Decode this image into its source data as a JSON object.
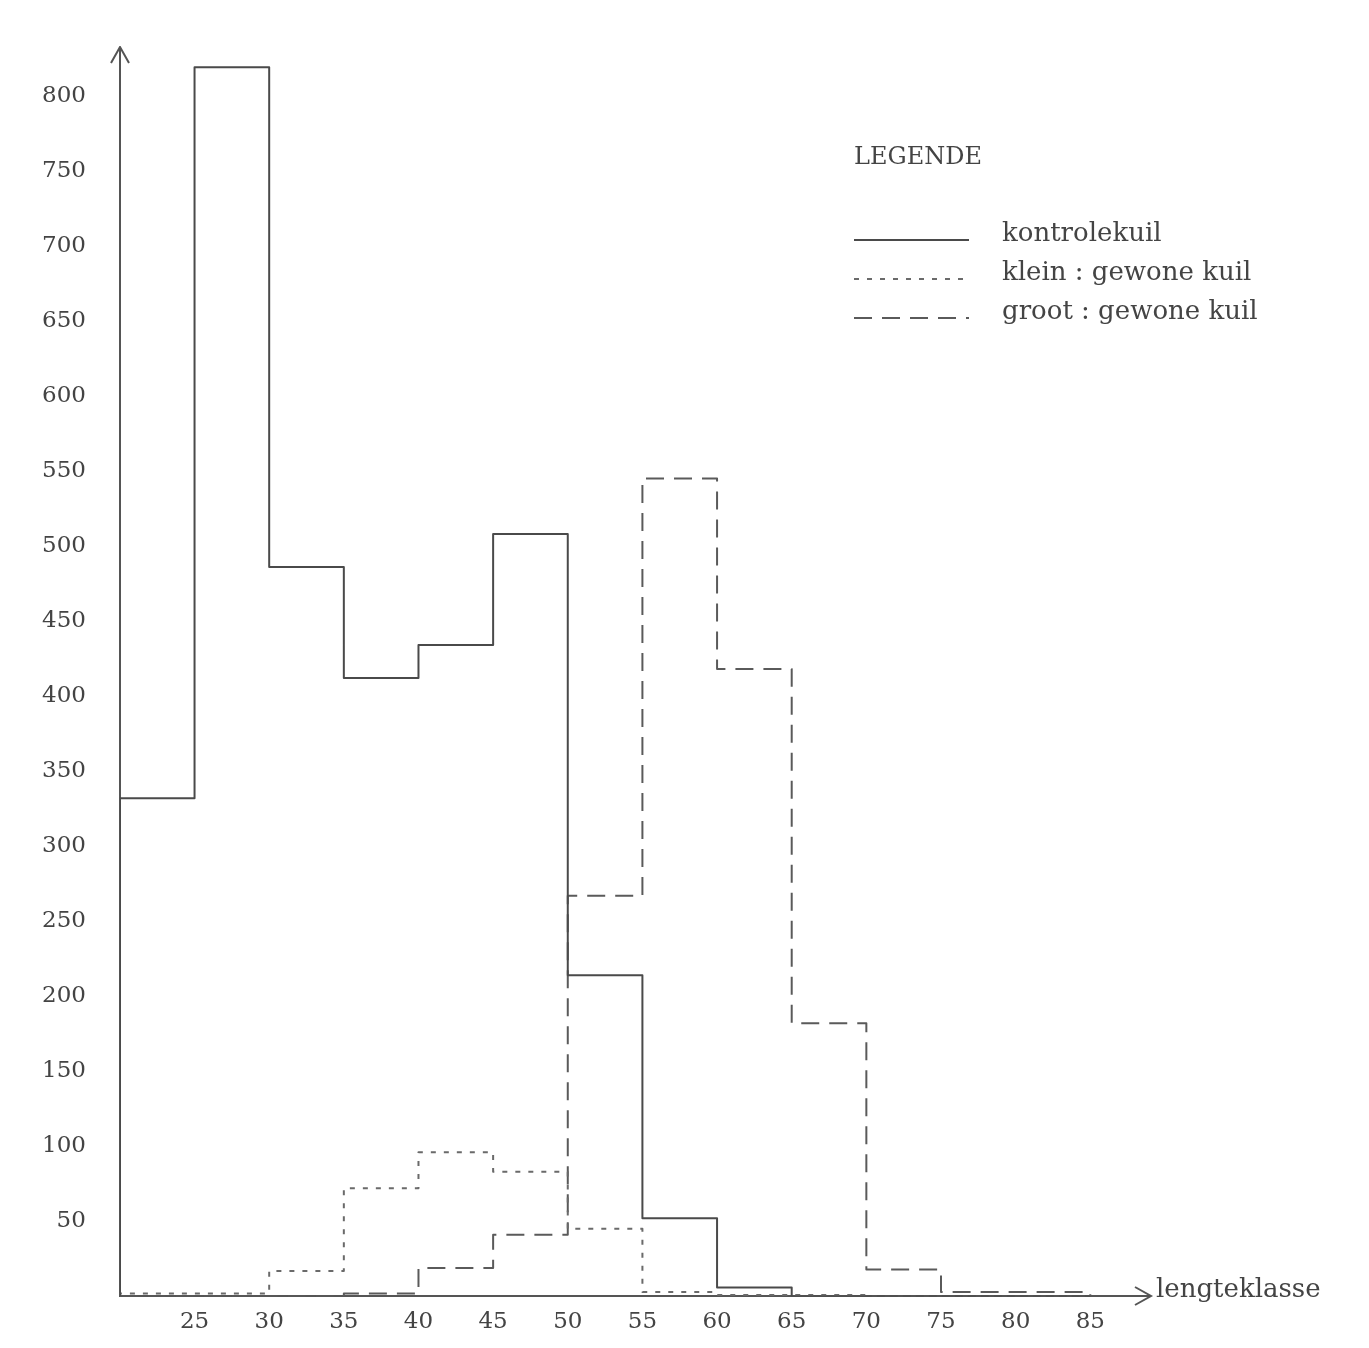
{
  "chart_data": {
    "type": "histogram",
    "xlabel": "lengteklasse",
    "legend_title": "LEGENDE",
    "legend": "top right",
    "bins": [
      20,
      25,
      30,
      35,
      40,
      45,
      50,
      55,
      60,
      65,
      70,
      75,
      80,
      85
    ],
    "series": [
      {
        "name": "kontrolekuil",
        "color": "#4a4a4a",
        "line_style": "solid",
        "values": [
          332,
          819,
          486,
          412,
          434,
          508,
          214,
          52,
          6,
          0,
          0,
          0,
          0
        ]
      },
      {
        "name": "klein : gewone kuil",
        "color": "#6a6a6a",
        "line_style": "dotted",
        "values": [
          2,
          2,
          17,
          72,
          96,
          83,
          45,
          3,
          1,
          1,
          0,
          0,
          0
        ]
      },
      {
        "name": "groot : gewone kuil",
        "color": "#5a5a5a",
        "line_style": "dashed",
        "values": [
          0,
          0,
          0,
          2,
          19,
          41,
          267,
          545,
          418,
          182,
          18,
          3,
          3
        ]
      }
    ],
    "xlim": [
      20,
      89
    ],
    "xticks": [
      25,
      30,
      35,
      40,
      45,
      50,
      55,
      60,
      65,
      70,
      75,
      80,
      85
    ],
    "ylim": [
      0,
      832
    ],
    "yticks": [
      50,
      100,
      150,
      200,
      250,
      300,
      350,
      400,
      450,
      500,
      550,
      600,
      650,
      700,
      750,
      800
    ]
  }
}
